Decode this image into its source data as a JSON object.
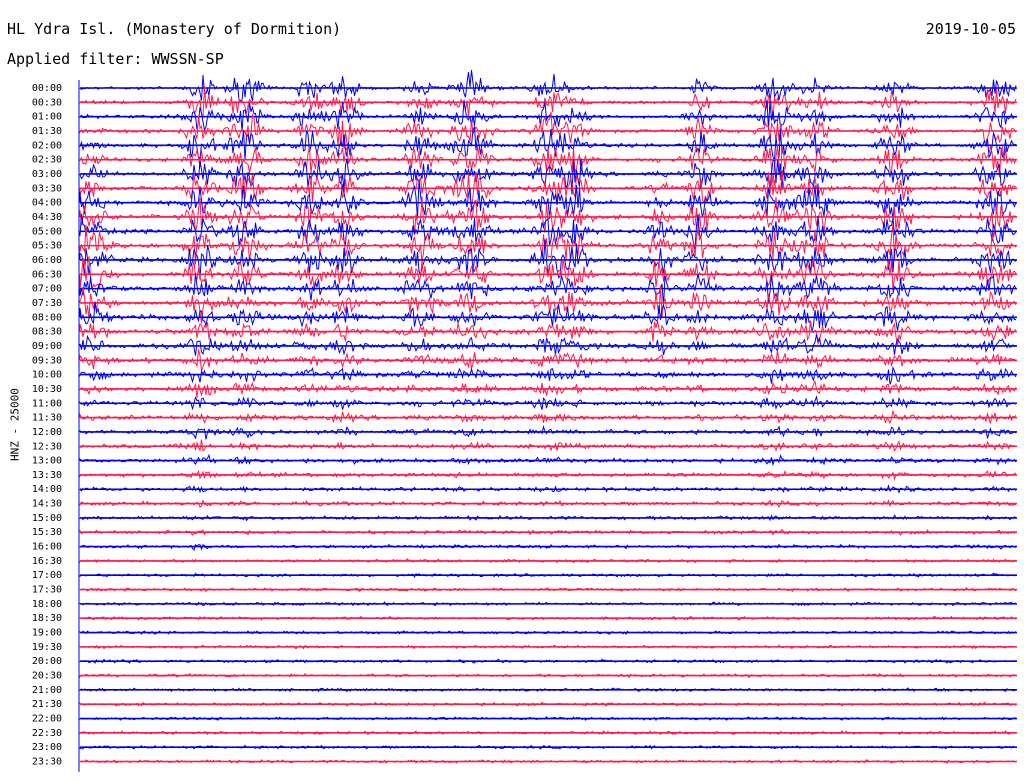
{
  "header": {
    "title": "HL Ydra Isl. (Monastery of Dormition)",
    "date": "2019-10-05",
    "filter_label": "Applied filter: WWSSN-SP"
  },
  "channel_label": "HNZ - 25000",
  "colors": {
    "even_rows": "#0000ee",
    "odd_rows": "#ff1a4d",
    "background": "#ffffff"
  },
  "chart_data": {
    "type": "line",
    "ylabel": "HNZ - 25000",
    "row_labels": [
      "00:00",
      "00:30",
      "01:00",
      "01:30",
      "02:00",
      "02:30",
      "03:00",
      "03:30",
      "04:00",
      "04:30",
      "05:00",
      "05:30",
      "06:00",
      "06:30",
      "07:00",
      "07:30",
      "08:00",
      "08:30",
      "09:00",
      "09:30",
      "10:00",
      "10:30",
      "11:00",
      "11:30",
      "12:00",
      "12:30",
      "13:00",
      "13:30",
      "14:00",
      "14:30",
      "15:00",
      "15:30",
      "16:00",
      "16:30",
      "17:00",
      "17:30",
      "18:00",
      "18:30",
      "19:00",
      "19:30",
      "20:00",
      "20:30",
      "21:00",
      "21:30",
      "22:00",
      "22:30",
      "23:00",
      "23:30"
    ],
    "row_span_minutes": 30,
    "series_colors": [
      "#0000ee",
      "#ff1a4d"
    ],
    "grid": false
  }
}
